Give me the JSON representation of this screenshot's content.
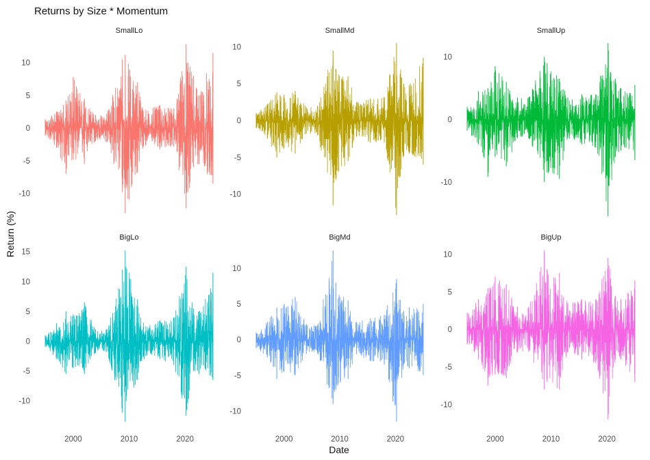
{
  "chart_data": {
    "type": "line",
    "title": "Returns by Size * Momentum",
    "xlabel": "Date",
    "ylabel": "Return (%)",
    "grid": false,
    "legend": "none",
    "x_ticks": [
      "2000",
      "2010",
      "2020"
    ],
    "x_range": [
      1994.5,
      2025.5
    ],
    "panels": [
      {
        "name": "SmallLo",
        "color": "#F8766D",
        "ylim": [
          -13.5,
          13
        ],
        "yticks": [
          -10,
          -5,
          0,
          5,
          10
        ],
        "series": [
          {
            "date": 1995,
            "min": -1.2,
            "max": 1.3
          },
          {
            "date": 1997,
            "min": -3.0,
            "max": 2.5
          },
          {
            "date": 1998.7,
            "min": -7.0,
            "max": 4.2
          },
          {
            "date": 2000,
            "min": -4.8,
            "max": 7.8
          },
          {
            "date": 2002,
            "min": -5.5,
            "max": 4.5
          },
          {
            "date": 2004,
            "min": -2.0,
            "max": 2.0
          },
          {
            "date": 2006,
            "min": -2.2,
            "max": 2.2
          },
          {
            "date": 2008.8,
            "min": -9.8,
            "max": 10.5
          },
          {
            "date": 2009.3,
            "min": -13.0,
            "max": 11.2
          },
          {
            "date": 2011.5,
            "min": -6.8,
            "max": 7.0
          },
          {
            "date": 2013,
            "min": -2.5,
            "max": 2.8
          },
          {
            "date": 2015.5,
            "min": -3.2,
            "max": 3.5
          },
          {
            "date": 2018,
            "min": -2.8,
            "max": 3.0
          },
          {
            "date": 2020.2,
            "min": -12.3,
            "max": 12.8
          },
          {
            "date": 2021.5,
            "min": -6.0,
            "max": 8.0
          },
          {
            "date": 2022.5,
            "min": -5.5,
            "max": 5.0
          },
          {
            "date": 2025,
            "min": -8.5,
            "max": 11.5
          }
        ]
      },
      {
        "name": "SmallMd",
        "color": "#B79F00",
        "ylim": [
          -13,
          10.5
        ],
        "yticks": [
          -10,
          -5,
          0,
          5,
          10
        ],
        "series": [
          {
            "date": 1995,
            "min": -1.0,
            "max": 1.0
          },
          {
            "date": 1997,
            "min": -2.5,
            "max": 2.2
          },
          {
            "date": 1998.7,
            "min": -5.0,
            "max": 3.8
          },
          {
            "date": 2000,
            "min": -3.8,
            "max": 3.5
          },
          {
            "date": 2002,
            "min": -4.5,
            "max": 4.0
          },
          {
            "date": 2004,
            "min": -1.8,
            "max": 1.8
          },
          {
            "date": 2006,
            "min": -2.0,
            "max": 2.0
          },
          {
            "date": 2008.8,
            "min": -11.5,
            "max": 9.5
          },
          {
            "date": 2009.3,
            "min": -8.0,
            "max": 7.0
          },
          {
            "date": 2011.5,
            "min": -5.5,
            "max": 6.0
          },
          {
            "date": 2013,
            "min": -2.2,
            "max": 2.5
          },
          {
            "date": 2015.5,
            "min": -3.0,
            "max": 3.0
          },
          {
            "date": 2018,
            "min": -3.0,
            "max": 3.2
          },
          {
            "date": 2020.2,
            "min": -12.8,
            "max": 10.5
          },
          {
            "date": 2021.5,
            "min": -4.8,
            "max": 5.0
          },
          {
            "date": 2022.5,
            "min": -4.5,
            "max": 4.8
          },
          {
            "date": 2025,
            "min": -6.0,
            "max": 8.5
          }
        ]
      },
      {
        "name": "SmallUp",
        "color": "#00BA38",
        "ylim": [
          -15.5,
          12.2
        ],
        "yticks": [
          -10,
          0,
          10
        ],
        "series": [
          {
            "date": 1995,
            "min": -1.8,
            "max": 2.0
          },
          {
            "date": 1997,
            "min": -4.0,
            "max": 4.5
          },
          {
            "date": 1998.7,
            "min": -9.2,
            "max": 5.0
          },
          {
            "date": 2000,
            "min": -6.0,
            "max": 8.5
          },
          {
            "date": 2002,
            "min": -7.5,
            "max": 6.0
          },
          {
            "date": 2004,
            "min": -3.0,
            "max": 3.5
          },
          {
            "date": 2006,
            "min": -3.0,
            "max": 3.5
          },
          {
            "date": 2008.8,
            "min": -10.0,
            "max": 10.0
          },
          {
            "date": 2009.3,
            "min": -8.5,
            "max": 9.0
          },
          {
            "date": 2011.5,
            "min": -9.5,
            "max": 6.5
          },
          {
            "date": 2013,
            "min": -3.0,
            "max": 3.5
          },
          {
            "date": 2015.5,
            "min": -4.0,
            "max": 4.0
          },
          {
            "date": 2018,
            "min": -4.5,
            "max": 4.0
          },
          {
            "date": 2020.2,
            "min": -15.5,
            "max": 12.2
          },
          {
            "date": 2021.5,
            "min": -6.0,
            "max": 6.5
          },
          {
            "date": 2022.5,
            "min": -5.0,
            "max": 5.0
          },
          {
            "date": 2025,
            "min": -6.5,
            "max": 5.5
          }
        ]
      },
      {
        "name": "BigLo",
        "color": "#00BFC4",
        "ylim": [
          -13.5,
          15.2
        ],
        "yticks": [
          -10,
          -5,
          0,
          5,
          10,
          15
        ],
        "series": [
          {
            "date": 1995,
            "min": -1.0,
            "max": 1.0
          },
          {
            "date": 1997,
            "min": -3.0,
            "max": 3.0
          },
          {
            "date": 1998.7,
            "min": -5.5,
            "max": 5.0
          },
          {
            "date": 2000,
            "min": -4.5,
            "max": 4.5
          },
          {
            "date": 2002,
            "min": -5.5,
            "max": 6.5
          },
          {
            "date": 2004,
            "min": -2.0,
            "max": 2.0
          },
          {
            "date": 2006,
            "min": -1.8,
            "max": 2.0
          },
          {
            "date": 2008.8,
            "min": -12.0,
            "max": 12.0
          },
          {
            "date": 2009.3,
            "min": -13.5,
            "max": 15.2
          },
          {
            "date": 2011.5,
            "min": -6.5,
            "max": 7.0
          },
          {
            "date": 2013,
            "min": -2.5,
            "max": 2.5
          },
          {
            "date": 2015.5,
            "min": -3.0,
            "max": 3.5
          },
          {
            "date": 2018,
            "min": -4.0,
            "max": 4.0
          },
          {
            "date": 2020.2,
            "min": -12.5,
            "max": 12.5
          },
          {
            "date": 2021.5,
            "min": -5.0,
            "max": 5.5
          },
          {
            "date": 2022.5,
            "min": -5.5,
            "max": 5.0
          },
          {
            "date": 2025,
            "min": -6.5,
            "max": 11.5
          }
        ]
      },
      {
        "name": "BigMd",
        "color": "#619CFF",
        "ylim": [
          -11.5,
          12.5
        ],
        "yticks": [
          -10,
          -5,
          0,
          5,
          10
        ],
        "series": [
          {
            "date": 1995,
            "min": -1.2,
            "max": 1.0
          },
          {
            "date": 1997,
            "min": -2.5,
            "max": 2.5
          },
          {
            "date": 1998.7,
            "min": -5.5,
            "max": 4.5
          },
          {
            "date": 2000,
            "min": -4.5,
            "max": 5.0
          },
          {
            "date": 2002,
            "min": -5.0,
            "max": 6.0
          },
          {
            "date": 2004,
            "min": -2.0,
            "max": 2.2
          },
          {
            "date": 2006,
            "min": -1.8,
            "max": 2.0
          },
          {
            "date": 2008.8,
            "min": -9.0,
            "max": 12.5
          },
          {
            "date": 2009.3,
            "min": -7.0,
            "max": 8.0
          },
          {
            "date": 2011.5,
            "min": -5.5,
            "max": 5.5
          },
          {
            "date": 2013,
            "min": -2.0,
            "max": 2.5
          },
          {
            "date": 2015.5,
            "min": -3.0,
            "max": 3.0
          },
          {
            "date": 2018,
            "min": -3.5,
            "max": 3.5
          },
          {
            "date": 2020.2,
            "min": -11.5,
            "max": 8.5
          },
          {
            "date": 2021.5,
            "min": -3.5,
            "max": 4.0
          },
          {
            "date": 2022.5,
            "min": -4.0,
            "max": 4.5
          },
          {
            "date": 2025,
            "min": -5.0,
            "max": 5.0
          }
        ]
      },
      {
        "name": "BigUp",
        "color": "#F564E3",
        "ylim": [
          -12.3,
          10.5
        ],
        "yticks": [
          -10,
          -5,
          0,
          5,
          10
        ],
        "series": [
          {
            "date": 1995,
            "min": -2.0,
            "max": 2.2
          },
          {
            "date": 1997,
            "min": -4.0,
            "max": 4.0
          },
          {
            "date": 1998.7,
            "min": -7.5,
            "max": 5.5
          },
          {
            "date": 2000,
            "min": -6.0,
            "max": 7.0
          },
          {
            "date": 2002,
            "min": -6.5,
            "max": 6.0
          },
          {
            "date": 2004,
            "min": -3.0,
            "max": 3.0
          },
          {
            "date": 2006,
            "min": -3.0,
            "max": 3.0
          },
          {
            "date": 2008.8,
            "min": -8.0,
            "max": 10.5
          },
          {
            "date": 2009.3,
            "min": -7.0,
            "max": 8.0
          },
          {
            "date": 2011.5,
            "min": -8.0,
            "max": 7.5
          },
          {
            "date": 2013,
            "min": -3.0,
            "max": 3.5
          },
          {
            "date": 2015.5,
            "min": -4.0,
            "max": 4.0
          },
          {
            "date": 2018,
            "min": -4.5,
            "max": 4.0
          },
          {
            "date": 2020.2,
            "min": -12.0,
            "max": 9.5
          },
          {
            "date": 2021.5,
            "min": -4.0,
            "max": 4.5
          },
          {
            "date": 2022.5,
            "min": -4.0,
            "max": 4.0
          },
          {
            "date": 2025,
            "min": -7.0,
            "max": 6.5
          }
        ]
      }
    ]
  }
}
